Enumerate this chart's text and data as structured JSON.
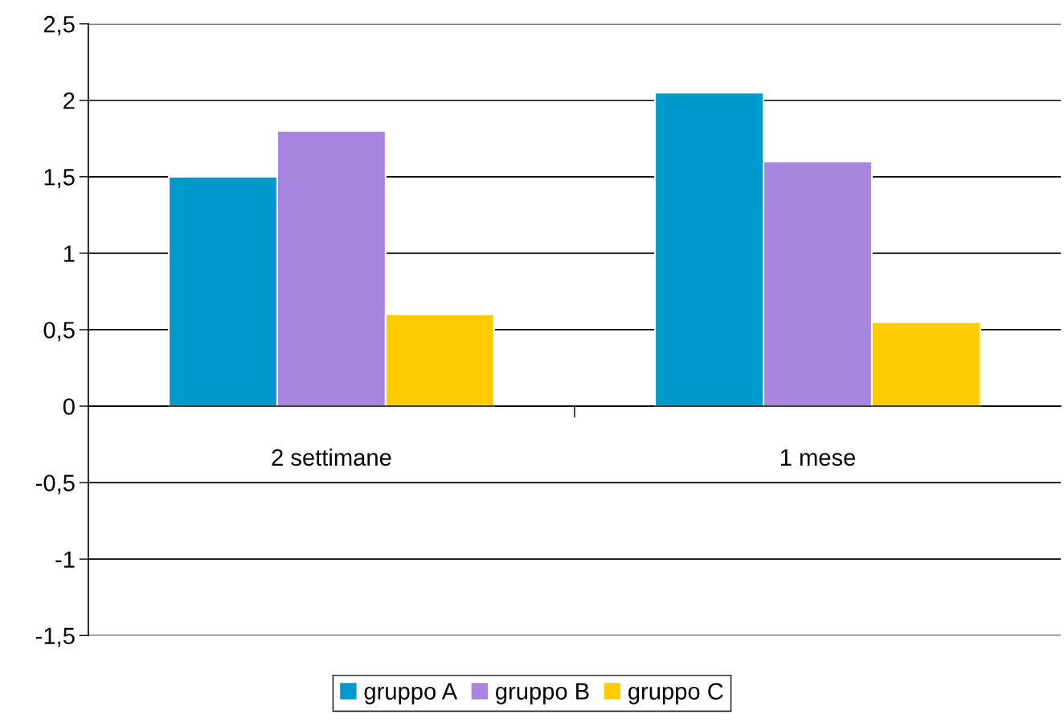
{
  "chart_data": {
    "type": "bar",
    "categories": [
      "2 settimane",
      "1 mese"
    ],
    "series": [
      {
        "name": "gruppo A",
        "color": "#0099cc",
        "values": [
          1.5,
          2.05
        ]
      },
      {
        "name": "gruppo B",
        "color": "#a886e0",
        "values": [
          1.8,
          1.6
        ]
      },
      {
        "name": "gruppo C",
        "color": "#ffcc00",
        "values": [
          0.6,
          0.55
        ]
      }
    ],
    "ylim": [
      -1.5,
      2.5
    ],
    "yticks": [
      {
        "value": -1.5,
        "label": "-1,5"
      },
      {
        "value": -1,
        "label": "-1"
      },
      {
        "value": -0.5,
        "label": "-0,5"
      },
      0,
      {
        "value": 0.5,
        "label": "0,5"
      },
      1,
      {
        "value": 1.5,
        "label": "1,5"
      },
      2,
      {
        "value": 2.5,
        "label": "2,5"
      }
    ],
    "grid": "y",
    "legend": "bottom"
  }
}
